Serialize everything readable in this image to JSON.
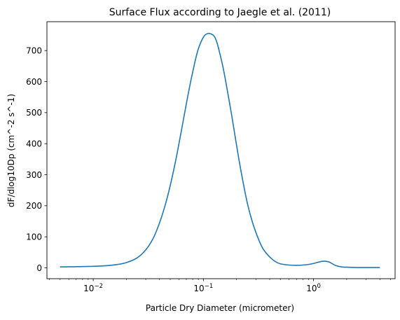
{
  "chart_data": {
    "type": "line",
    "title": "Surface Flux according to Jaegle et al. (2011)",
    "xlabel": "Particle Dry Diameter (micrometer)",
    "ylabel": "dF/dlog10Dp (cm^-2 s^-1)",
    "xscale": "log",
    "xlim": [
      0.0038,
      5.5
    ],
    "ylim": [
      -35,
      793
    ],
    "grid": false,
    "line_color": "#1f77b4",
    "y_ticks": [
      0,
      100,
      200,
      300,
      400,
      500,
      600,
      700
    ],
    "x_ticks": [
      {
        "value": 0.01,
        "base": "10",
        "exp": "−2"
      },
      {
        "value": 0.1,
        "base": "10",
        "exp": "−1"
      },
      {
        "value": 1,
        "base": "10",
        "exp": "0"
      }
    ],
    "series": [
      {
        "x": [
          0.005,
          0.008,
          0.012,
          0.016,
          0.02,
          0.025,
          0.03,
          0.035,
          0.04,
          0.045,
          0.05,
          0.056,
          0.063,
          0.071,
          0.079,
          0.089,
          0.1,
          0.11,
          0.12,
          0.126,
          0.133,
          0.14,
          0.15,
          0.16,
          0.18,
          0.2,
          0.22,
          0.25,
          0.28,
          0.32,
          0.35,
          0.4,
          0.45,
          0.5,
          0.6,
          0.7,
          0.8,
          0.9,
          1.0,
          1.1,
          1.2,
          1.3,
          1.4,
          1.5,
          1.6,
          1.8,
          2.0,
          2.5,
          3.0,
          4.0
        ],
        "y": [
          3,
          4,
          6,
          10,
          17,
          32,
          58,
          95,
          145,
          202,
          265,
          345,
          440,
          540,
          622,
          700,
          743,
          755,
          752,
          745,
          725,
          695,
          650,
          598,
          495,
          395,
          310,
          210,
          145,
          88,
          60,
          35,
          20,
          13,
          9,
          8,
          9,
          11,
          14,
          18,
          21,
          21,
          18,
          12,
          7,
          3,
          2,
          1,
          1,
          1
        ]
      }
    ]
  }
}
